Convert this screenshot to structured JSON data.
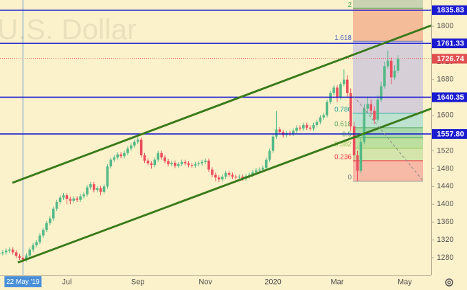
{
  "chart_data": {
    "type": "candlestick",
    "watermark": "U.S. Dollar",
    "categories": [
      null,
      null,
      null,
      null,
      null,
      null,
      null,
      "22 May '19",
      null,
      null,
      null,
      null,
      null,
      null,
      null,
      null,
      null,
      null,
      null,
      null,
      "Jul",
      null,
      null,
      null,
      null,
      null,
      null,
      null,
      null,
      null,
      null,
      null,
      null,
      null,
      null,
      null,
      null,
      null,
      null,
      null,
      null,
      "Sep",
      null,
      null,
      null,
      null,
      null,
      null,
      null,
      null,
      null,
      null,
      null,
      null,
      null,
      null,
      null,
      null,
      null,
      null,
      null,
      "Nov",
      null,
      null,
      null,
      null,
      null,
      null,
      null,
      null,
      null,
      null,
      null,
      null,
      null,
      null,
      null,
      null,
      null,
      null,
      null,
      "2020",
      null,
      null,
      null,
      null,
      null,
      null,
      null,
      null,
      null,
      null,
      null,
      null,
      null,
      null,
      null,
      null,
      null,
      null,
      "Mar",
      null,
      null,
      null,
      null,
      null,
      null,
      null,
      null,
      null,
      null,
      null,
      null,
      null,
      null,
      null,
      null,
      null,
      null,
      null,
      "May",
      null,
      null,
      null,
      null,
      null,
      null,
      null
    ],
    "crosshair_category": 7,
    "open": [
      1288,
      1290,
      1292,
      1296,
      1298,
      1292,
      1284,
      1280,
      1276,
      1285,
      1298,
      1308,
      1315,
      1330,
      1342,
      1358,
      1368,
      1390,
      1405,
      1415,
      1420,
      1412,
      1408,
      1413,
      1410,
      1418,
      1422,
      1438,
      1445,
      1432,
      1436,
      1428,
      1440,
      1485,
      1500,
      1505,
      1512,
      1508,
      1515,
      1525,
      1532,
      1540,
      1545,
      1510,
      1498,
      1492,
      1488,
      1500,
      1515,
      1505,
      1497,
      1490,
      1493,
      1486,
      1490,
      1495,
      1492,
      1488,
      1487,
      1490,
      1492,
      1495,
      1498,
      1478,
      1466,
      1460,
      1456,
      1462,
      1470,
      1466,
      1462,
      1460,
      1462,
      1458,
      1463,
      1466,
      1472,
      1476,
      1478,
      1482,
      1500,
      1520,
      1552,
      1568,
      1562,
      1555,
      1560,
      1558,
      1565,
      1572,
      1570,
      1578,
      1572,
      1570,
      1578,
      1585,
      1595,
      1600,
      1630,
      1650,
      1662,
      1640,
      1670,
      1680,
      1650,
      1575,
      1510,
      1475,
      1540,
      1615,
      1625,
      1610,
      1590,
      1635,
      1665,
      1710,
      1722,
      1685,
      1700,
      null,
      null,
      null,
      null,
      null,
      null,
      null,
      null,
      null
    ],
    "high": [
      1295,
      1297,
      1301,
      1303,
      1303,
      1297,
      1289,
      1285,
      1290,
      1303,
      1313,
      1320,
      1335,
      1347,
      1363,
      1373,
      1395,
      1410,
      1420,
      1425,
      1425,
      1417,
      1418,
      1418,
      1423,
      1427,
      1443,
      1450,
      1450,
      1441,
      1441,
      1445,
      1490,
      1505,
      1510,
      1517,
      1517,
      1520,
      1530,
      1537,
      1545,
      1550,
      1550,
      1515,
      1503,
      1497,
      1505,
      1520,
      1520,
      1510,
      1502,
      1498,
      1498,
      1495,
      1500,
      1500,
      1497,
      1493,
      1495,
      1497,
      1500,
      1503,
      1503,
      1483,
      1471,
      1465,
      1467,
      1475,
      1475,
      1471,
      1467,
      1467,
      1467,
      1468,
      1471,
      1477,
      1481,
      1483,
      1487,
      1505,
      1525,
      1557,
      1610,
      1573,
      1567,
      1565,
      1565,
      1570,
      1577,
      1577,
      1583,
      1583,
      1577,
      1583,
      1590,
      1600,
      1605,
      1635,
      1655,
      1667,
      1667,
      1675,
      1703,
      1690,
      1660,
      1585,
      1520,
      1550,
      1625,
      1640,
      1635,
      1620,
      1645,
      1675,
      1720,
      1745,
      1730,
      1712,
      1735,
      null,
      null,
      null,
      null,
      null,
      null,
      null,
      null,
      null
    ],
    "low": [
      1283,
      1285,
      1287,
      1291,
      1287,
      1279,
      1275,
      1268,
      1271,
      1280,
      1293,
      1303,
      1310,
      1325,
      1337,
      1353,
      1363,
      1385,
      1400,
      1410,
      1400,
      1400,
      1403,
      1405,
      1405,
      1413,
      1417,
      1433,
      1427,
      1427,
      1420,
      1423,
      1435,
      1480,
      1495,
      1500,
      1503,
      1503,
      1510,
      1520,
      1527,
      1535,
      1505,
      1493,
      1487,
      1480,
      1483,
      1495,
      1500,
      1492,
      1485,
      1485,
      1481,
      1481,
      1485,
      1487,
      1483,
      1482,
      1482,
      1485,
      1487,
      1490,
      1473,
      1461,
      1452,
      1450,
      1451,
      1457,
      1461,
      1457,
      1455,
      1455,
      1453,
      1453,
      1458,
      1461,
      1467,
      1471,
      1473,
      1477,
      1495,
      1515,
      1547,
      1557,
      1550,
      1550,
      1553,
      1553,
      1560,
      1565,
      1565,
      1567,
      1565,
      1565,
      1573,
      1580,
      1590,
      1595,
      1625,
      1645,
      1630,
      1635,
      1665,
      1640,
      1565,
      1495,
      1451,
      1470,
      1535,
      1605,
      1600,
      1580,
      1585,
      1630,
      1660,
      1705,
      1670,
      1680,
      1695,
      null,
      null,
      null,
      null,
      null,
      null,
      null,
      null,
      null
    ],
    "close": [
      1290,
      1292,
      1296,
      1298,
      1292,
      1284,
      1280,
      1276,
      1285,
      1298,
      1308,
      1315,
      1330,
      1342,
      1358,
      1368,
      1390,
      1405,
      1415,
      1420,
      1412,
      1408,
      1413,
      1410,
      1418,
      1422,
      1438,
      1445,
      1432,
      1436,
      1428,
      1440,
      1485,
      1500,
      1505,
      1512,
      1508,
      1515,
      1525,
      1532,
      1540,
      1545,
      1510,
      1498,
      1492,
      1488,
      1500,
      1515,
      1505,
      1497,
      1490,
      1493,
      1486,
      1490,
      1495,
      1492,
      1488,
      1487,
      1490,
      1492,
      1495,
      1498,
      1478,
      1466,
      1460,
      1456,
      1462,
      1470,
      1466,
      1462,
      1460,
      1462,
      1458,
      1463,
      1466,
      1472,
      1476,
      1478,
      1482,
      1500,
      1520,
      1552,
      1568,
      1562,
      1555,
      1560,
      1558,
      1565,
      1572,
      1570,
      1578,
      1572,
      1570,
      1578,
      1585,
      1595,
      1600,
      1630,
      1650,
      1662,
      1640,
      1670,
      1680,
      1650,
      1575,
      1510,
      1475,
      1540,
      1615,
      1625,
      1610,
      1590,
      1635,
      1665,
      1710,
      1722,
      1685,
      1700,
      1726.74,
      null,
      null,
      null,
      null,
      null,
      null,
      null,
      null,
      null
    ],
    "up_color": "#53b987",
    "down_color": "#eb4d5c",
    "ylim": [
      1241.4,
      1858.7
    ],
    "yticks": [
      1280,
      1320,
      1360,
      1400,
      1440,
      1480,
      1520,
      1560,
      1600,
      1640,
      1680,
      1720,
      1760,
      1800
    ],
    "grid": false,
    "price_lines": [
      {
        "value": 1835.83,
        "color": "#1a1ad0"
      },
      {
        "value": 1761.33,
        "color": "#1a1ad0"
      },
      {
        "value": 1640.35,
        "color": "#1a1ad0"
      },
      {
        "value": 1557.8,
        "label": "1557.80",
        "color": "#1a1ad0"
      }
    ],
    "last_price": 1726.74,
    "last_price_color": "#e05050",
    "fibonacci": {
      "levels": [
        0,
        0.236,
        0.382,
        0.5,
        0.618,
        0.786,
        1.618,
        2
      ],
      "range": [
        1452,
        1646
      ],
      "label_colors": [
        "#787b86",
        "#f23645",
        "#8bc34a",
        "#4caf50",
        "#5aa85a",
        "#26a69a",
        "#5c6bc0",
        "#4caf50"
      ],
      "fill_colors": [
        "#f4a79a",
        "#c5e0a0",
        "#a8d890",
        "#8fd0a0",
        "#a8dcd0",
        "#c9c3dc",
        "#f3a98a",
        "#b9c9a9"
      ]
    }
  }
}
